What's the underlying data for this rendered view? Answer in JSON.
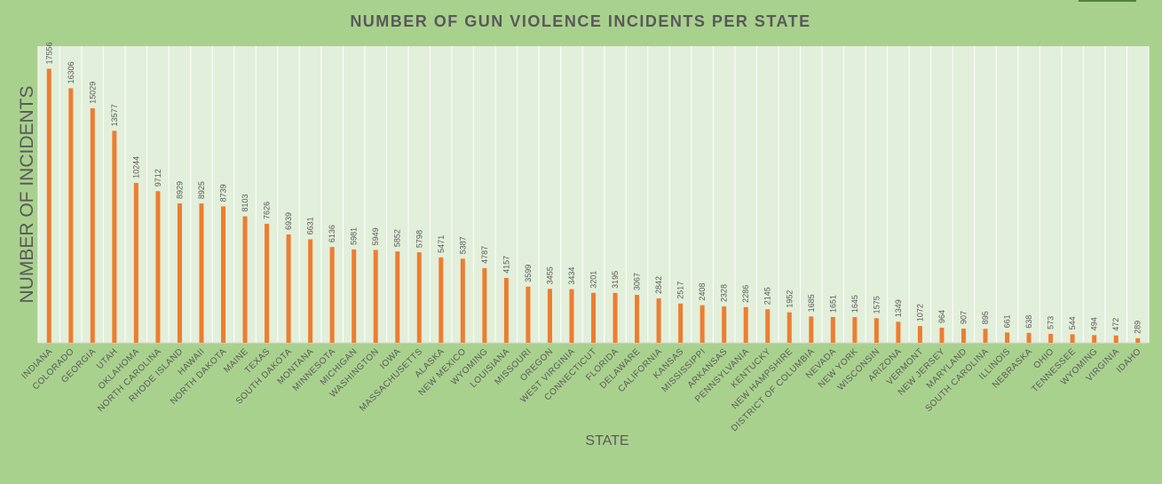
{
  "chart_data": {
    "type": "bar",
    "title": "NUMBER OF GUN VIOLENCE INCIDENTS PER STATE",
    "xlabel": "STATE",
    "ylabel": "NUMBER OF INCIDENTS",
    "ylim": [
      0,
      19000
    ],
    "grid": "vertical",
    "legend": "none",
    "colors": {
      "background": "#a9d18e",
      "plot_background": "#e2efda",
      "bar": "#ed7d31",
      "text": "#595959",
      "gridline": "#ffffff"
    },
    "categories": [
      "INDIANA",
      "COLORADO",
      "GEORGIA",
      "UTAH",
      "OKLAHOMA",
      "NORTH CAROLINA",
      "RHODE ISLAND",
      "HAWAII",
      "NORTH DAKOTA",
      "MAINE",
      "TEXAS",
      "SOUTH DAKOTA",
      "MONTANA",
      "MINNESOTA",
      "MICHIGAN",
      "WASHINGTON",
      "IOWA",
      "MASSACHUSETTS",
      "ALASKA",
      "NEW MEXICO",
      "WYOMING",
      "LOUISIANA",
      "MISSOURI",
      "OREGON",
      "WEST VIRGINIA",
      "CONNECTICUT",
      "FLORIDA",
      "DELAWARE",
      "CALIFORNIA",
      "KANSAS",
      "MISSISSIPPI",
      "ARKANSAS",
      "PENNSYLVANIA",
      "KENTUCKY",
      "NEW HAMPSHIRE",
      "DISTRICT OF COLUMBIA",
      "NEVADA",
      "NEW YORK",
      "WISCONSIN",
      "ARIZONA",
      "VERMONT",
      "NEW JERSEY",
      "MARYLAND",
      "SOUTH CAROLINA",
      "ILLINOIS",
      "NEBRASKA",
      "OHIO",
      "TENNESSEE",
      "WYOMING",
      "VIRGINIA",
      "IDAHO"
    ],
    "values": [
      17556,
      16306,
      15029,
      13577,
      10244,
      9712,
      8929,
      8925,
      8739,
      8103,
      7626,
      6939,
      6631,
      6136,
      5981,
      5949,
      5852,
      5798,
      5471,
      5387,
      4787,
      4157,
      3599,
      3455,
      3434,
      3201,
      3195,
      3067,
      2842,
      2517,
      2408,
      2328,
      2286,
      2145,
      1952,
      1685,
      1651,
      1645,
      1575,
      1349,
      1072,
      964,
      907,
      895,
      661,
      638,
      573,
      544,
      494,
      472,
      289
    ]
  }
}
